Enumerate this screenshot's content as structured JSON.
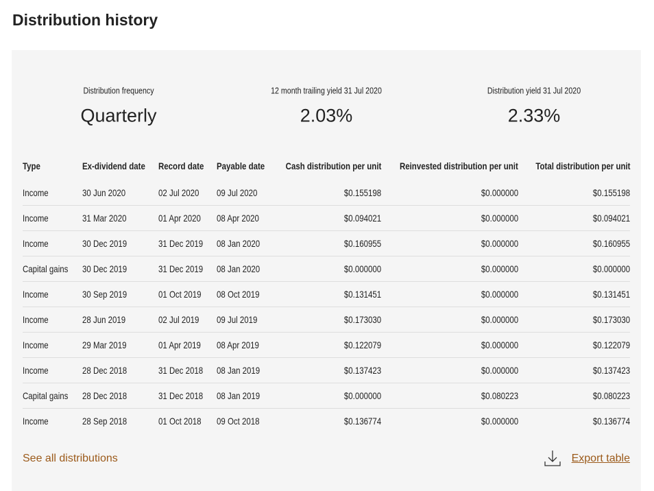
{
  "header": {
    "title": "Distribution history"
  },
  "summary": [
    {
      "label": "Distribution frequency",
      "value": "Quarterly"
    },
    {
      "label": "12 month trailing yield 31 Jul 2020",
      "value": "2.03%"
    },
    {
      "label": "Distribution yield 31 Jul 2020",
      "value": "2.33%"
    }
  ],
  "table": {
    "columns": [
      "Type",
      "Ex-dividend date",
      "Record date",
      "Payable date",
      "Cash distribution per unit",
      "Reinvested distribution per unit",
      "Total distribution per unit"
    ],
    "rows": [
      [
        "Income",
        "30 Jun 2020",
        "02 Jul 2020",
        "09 Jul 2020",
        "$0.155198",
        "$0.000000",
        "$0.155198"
      ],
      [
        "Income",
        "31 Mar 2020",
        "01 Apr 2020",
        "08 Apr 2020",
        "$0.094021",
        "$0.000000",
        "$0.094021"
      ],
      [
        "Income",
        "30 Dec 2019",
        "31 Dec 2019",
        "08 Jan 2020",
        "$0.160955",
        "$0.000000",
        "$0.160955"
      ],
      [
        "Capital gains",
        "30 Dec 2019",
        "31 Dec 2019",
        "08 Jan 2020",
        "$0.000000",
        "$0.000000",
        "$0.000000"
      ],
      [
        "Income",
        "30 Sep 2019",
        "01 Oct 2019",
        "08 Oct 2019",
        "$0.131451",
        "$0.000000",
        "$0.131451"
      ],
      [
        "Income",
        "28 Jun 2019",
        "02 Jul 2019",
        "09 Jul 2019",
        "$0.173030",
        "$0.000000",
        "$0.173030"
      ],
      [
        "Income",
        "29 Mar 2019",
        "01 Apr 2019",
        "08 Apr 2019",
        "$0.122079",
        "$0.000000",
        "$0.122079"
      ],
      [
        "Income",
        "28 Dec 2018",
        "31 Dec 2018",
        "08 Jan 2019",
        "$0.137423",
        "$0.000000",
        "$0.137423"
      ],
      [
        "Capital gains",
        "28 Dec 2018",
        "31 Dec 2018",
        "08 Jan 2019",
        "$0.000000",
        "$0.080223",
        "$0.080223"
      ],
      [
        "Income",
        "28 Sep 2018",
        "01 Oct 2018",
        "09 Oct 2018",
        "$0.136774",
        "$0.000000",
        "$0.136774"
      ]
    ]
  },
  "links": {
    "see_all": "See all distributions",
    "export": "Export table"
  }
}
